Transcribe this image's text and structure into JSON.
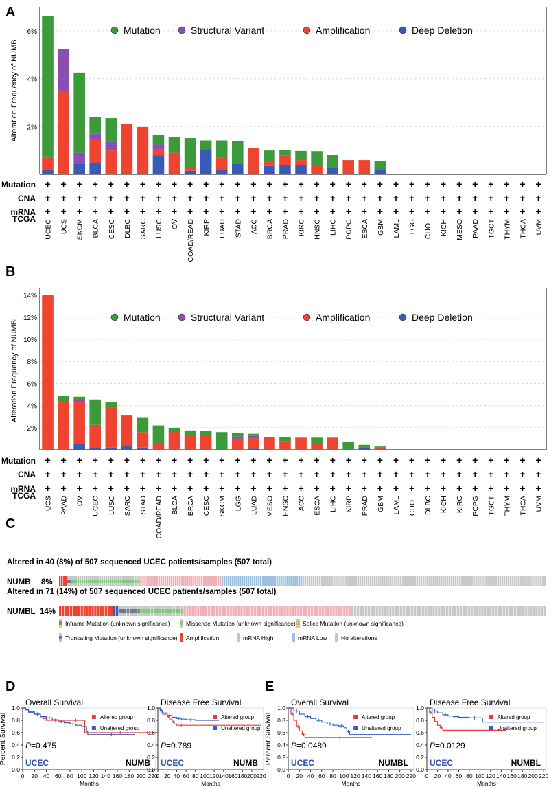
{
  "colors": {
    "mutation": "#3b9b3b",
    "structural": "#8a4fb0",
    "amplification": "#ee4430",
    "deletion": "#3a5ab8",
    "inframe": "#b8860b",
    "missense": "#7fc97f",
    "splice": "#f0b050",
    "truncating": "#6d7a8c",
    "mrna_high": "#f0b0b8",
    "mrna_low": "#9ec0e0",
    "no_alt": "#c8c8c8",
    "survival_altered": "#e83a3a",
    "survival_unaltered": "#3060c0",
    "ucec_label": "#3050b0"
  },
  "panels": {
    "A": "A",
    "B": "B",
    "C": "C",
    "D": "D",
    "E": "E"
  },
  "legend_labels": [
    "Mutation",
    "Structural Variant",
    "Amplification",
    "Deep Deletion"
  ],
  "row_labels": [
    "Mutation",
    "CNA",
    "mRNA",
    "TCGA"
  ],
  "plus_symbol": "+",
  "chart_data": [
    {
      "type": "bar",
      "id": "A",
      "ylabel": "Alteration Frequency of NUMB",
      "ylim": [
        0,
        7
      ],
      "yticks": [
        "2%",
        "4%",
        "6%"
      ],
      "ytick_values": [
        2,
        4,
        6
      ],
      "categories": [
        "UCEC",
        "UCS",
        "SKCM",
        "BLCA",
        "CESC",
        "DLBC",
        "SARC",
        "LUSC",
        "OV",
        "COAD/READ",
        "KIRP",
        "LUAD",
        "STAD",
        "ACC",
        "BRCA",
        "PRAD",
        "KIRC",
        "HNSC",
        "LIHC",
        "PCPG",
        "ESCA",
        "GBM",
        "LAML",
        "LGG",
        "CHOL",
        "KICH",
        "MESO",
        "PAAD",
        "TGCT",
        "THYM",
        "THCA",
        "UVM"
      ],
      "series": [
        {
          "name": "Deep Deletion",
          "values": [
            0.2,
            0,
            0.45,
            0.5,
            0,
            0,
            0,
            0.8,
            0,
            0.15,
            1.05,
            0.2,
            0.45,
            0,
            0.35,
            0.4,
            0.4,
            0,
            0.3,
            0,
            0,
            0.2,
            0,
            0,
            0,
            0,
            0,
            0,
            0,
            0,
            0,
            0
          ]
        },
        {
          "name": "Amplification",
          "values": [
            0.55,
            3.5,
            0,
            0.95,
            1,
            2.1,
            1.98,
            0.25,
            0.9,
            0.15,
            0,
            0.5,
            0,
            1.1,
            0.2,
            0.4,
            0.2,
            0.4,
            0,
            0.6,
            0.6,
            0,
            0,
            0,
            0,
            0,
            0,
            0,
            0,
            0,
            0,
            0
          ]
        },
        {
          "name": "Structural Variant",
          "values": [
            0,
            1.75,
            0.45,
            0.25,
            0.35,
            0,
            0,
            0.2,
            0,
            0,
            0,
            0,
            0,
            0,
            0,
            0,
            0,
            0,
            0,
            0,
            0,
            0,
            0,
            0,
            0,
            0,
            0,
            0,
            0,
            0,
            0,
            0
          ]
        },
        {
          "name": "Mutation",
          "values": [
            5.85,
            0,
            3.35,
            0.7,
            1,
            0,
            0,
            0.4,
            0.65,
            1.22,
            0.37,
            0.72,
            0.93,
            0,
            0.45,
            0.23,
            0.38,
            0.57,
            0.53,
            0,
            0,
            0.35,
            0,
            0,
            0,
            0,
            0,
            0,
            0,
            0,
            0,
            0
          ]
        }
      ]
    },
    {
      "type": "bar",
      "id": "B",
      "ylabel": "Alteration Frequency of NUMBL",
      "ylim": [
        0,
        14.6
      ],
      "yticks": [
        "2%",
        "4%",
        "6%",
        "8%",
        "10%",
        "12%",
        "14%"
      ],
      "ytick_values": [
        2,
        4,
        6,
        8,
        10,
        12,
        14
      ],
      "categories": [
        "UCS",
        "PAAD",
        "OV",
        "UCEC",
        "LUSC",
        "SARC",
        "STAD",
        "COAD/READ",
        "BLCA",
        "BRCA",
        "CESC",
        "SKCM",
        "LGG",
        "LUAD",
        "MESO",
        "HNSC",
        "ACC",
        "ESCA",
        "LIHC",
        "KIRP",
        "PRAD",
        "GBM",
        "LAML",
        "CHOL",
        "DLBC",
        "KICH",
        "KIRC",
        "PCPG",
        "TGCT",
        "THYM",
        "THCA",
        "UVM"
      ],
      "series": [
        {
          "name": "Deep Deletion",
          "values": [
            0,
            0,
            0.55,
            0.15,
            0.2,
            0.4,
            0.2,
            0,
            0,
            0,
            0,
            0,
            0,
            0.1,
            0,
            0,
            0,
            0,
            0,
            0,
            0.15,
            0,
            0,
            0,
            0,
            0,
            0,
            0,
            0,
            0,
            0,
            0
          ]
        },
        {
          "name": "Amplification",
          "values": [
            14,
            4.35,
            3.75,
            2.1,
            3.65,
            2.7,
            1.4,
            0.55,
            1.7,
            1.35,
            1.35,
            0,
            1,
            0.95,
            1.15,
            0.8,
            1.1,
            0.55,
            1.1,
            0,
            0.1,
            0.2,
            0,
            0,
            0,
            0,
            0,
            0,
            0,
            0,
            0,
            0
          ]
        },
        {
          "name": "Structural Variant",
          "values": [
            0,
            0,
            0.2,
            0,
            0,
            0,
            0,
            0,
            0,
            0,
            0,
            0,
            0.2,
            0.2,
            0,
            0,
            0,
            0,
            0,
            0,
            0,
            0,
            0,
            0,
            0,
            0,
            0,
            0,
            0,
            0,
            0,
            0
          ]
        },
        {
          "name": "Mutation",
          "values": [
            0,
            0.55,
            0.3,
            2.3,
            0.45,
            0,
            1.35,
            1.65,
            0.25,
            0.4,
            0.35,
            1.6,
            0.35,
            0.2,
            0,
            0.35,
            0,
            0.55,
            0,
            0.75,
            0.2,
            0.1,
            0,
            0,
            0,
            0,
            0,
            0,
            0,
            0,
            0,
            0
          ]
        }
      ]
    },
    {
      "type": "oncoprint",
      "id": "C",
      "rows": [
        {
          "header": "Altered in 40 (8%) of 507 sequenced UCEC patients/samples (507 total)",
          "gene": "NUMB",
          "pct": "8%",
          "segments": [
            {
              "type": "amplification",
              "count": 4
            },
            {
              "type": "truncating",
              "count": 2
            },
            {
              "type": "missense",
              "count": 34
            },
            {
              "type": "mrna_high",
              "count": 40
            },
            {
              "type": "mrna_low",
              "count": 40
            },
            {
              "type": "no_alt",
              "count": 120
            }
          ]
        },
        {
          "header": "Altered in 71 (14%) of 507 sequenced UCEC patients/samples (507 total)",
          "gene": "NUMBL",
          "pct": "14%",
          "segments": [
            {
              "type": "amplification",
              "count": 20
            },
            {
              "type": "deletion",
              "count": 2
            },
            {
              "type": "truncating",
              "count": 8
            },
            {
              "type": "missense",
              "count": 16
            },
            {
              "type": "mrna_high",
              "count": 62
            },
            {
              "type": "no_alt",
              "count": 72
            }
          ]
        }
      ],
      "legend": [
        {
          "key": "inframe",
          "label": "Inframe Mutation (unknown significance)"
        },
        {
          "key": "missense",
          "label": "Missense Mutation (unknown significance)"
        },
        {
          "key": "splice",
          "label": "Splice Mutation (unknown significance)"
        },
        {
          "key": "truncating",
          "label": "Truncating Mutation (unknown significance)"
        },
        {
          "key": "amplification",
          "label": "Amplification"
        },
        {
          "key": "mrna_high",
          "label": "mRNA High"
        },
        {
          "key": "mrna_low",
          "label": "mRNA Low"
        },
        {
          "key": "no_alt",
          "label": "No alterations"
        }
      ]
    },
    {
      "type": "line",
      "id": "D-OS",
      "title": "Overall Survival",
      "ylabel": "Percent Survival",
      "xlabel": "Months",
      "xlim": [
        0,
        225
      ],
      "ylim": [
        0,
        1.0
      ],
      "xticks": [
        0,
        20,
        40,
        60,
        80,
        100,
        120,
        140,
        160,
        180,
        200,
        220
      ],
      "yticks": [
        "0.0",
        "0.2",
        "0.4",
        "0.6",
        "0.8",
        "1.0"
      ],
      "ytick_values": [
        0,
        0.2,
        0.4,
        0.6,
        0.8,
        1.0
      ],
      "legend": [
        "Altered group",
        "Unaltered group"
      ],
      "pvalue_prefix": "P",
      "pvalue": "=0.475",
      "cohort": "UCEC",
      "gene": "NUMB",
      "series": [
        {
          "name": "Altered group",
          "x": [
            0,
            5,
            10,
            20,
            30,
            35,
            40,
            50,
            60,
            80,
            100,
            105,
            225
          ],
          "y": [
            1.0,
            0.97,
            0.94,
            0.9,
            0.86,
            0.83,
            0.8,
            0.8,
            0.8,
            0.8,
            0.8,
            0.6,
            0.6
          ]
        },
        {
          "name": "Unaltered group",
          "x": [
            0,
            5,
            10,
            20,
            30,
            40,
            50,
            60,
            70,
            80,
            90,
            100,
            108,
            110,
            190
          ],
          "y": [
            1.0,
            0.97,
            0.93,
            0.9,
            0.86,
            0.84,
            0.81,
            0.78,
            0.76,
            0.74,
            0.72,
            0.7,
            0.62,
            0.57,
            0.57
          ]
        }
      ]
    },
    {
      "type": "line",
      "id": "D-DFS",
      "title": "Disease Free Survival",
      "xlabel": "Months",
      "xlim": [
        0,
        225
      ],
      "ylim": [
        0,
        1.0
      ],
      "xticks": [
        0,
        20,
        40,
        60,
        80,
        100,
        120,
        140,
        160,
        180,
        200,
        220
      ],
      "yticks": [
        "0.0",
        "0.2",
        "0.4",
        "0.6",
        "0.8",
        "1.0"
      ],
      "ytick_values": [
        0,
        0.2,
        0.4,
        0.6,
        0.8,
        1.0
      ],
      "legend": [
        "Altered group",
        "Unaltered group"
      ],
      "pvalue_prefix": "P",
      "pvalue": "=0.789",
      "cohort": "UCEC",
      "gene": "NUMB",
      "series": [
        {
          "name": "Altered group",
          "x": [
            0,
            5,
            10,
            20,
            25,
            30,
            35,
            40,
            60,
            220
          ],
          "y": [
            1.0,
            0.95,
            0.9,
            0.86,
            0.82,
            0.78,
            0.74,
            0.72,
            0.72,
            0.72
          ]
        },
        {
          "name": "Unaltered group",
          "x": [
            0,
            5,
            10,
            20,
            30,
            40,
            50,
            60,
            80,
            130
          ],
          "y": [
            1.0,
            0.96,
            0.92,
            0.88,
            0.85,
            0.83,
            0.82,
            0.81,
            0.8,
            0.8
          ]
        }
      ]
    },
    {
      "type": "line",
      "id": "E-OS",
      "title": "Overall Survival",
      "ylabel": "Percent Survival",
      "xlabel": "Months",
      "xlim": [
        0,
        225
      ],
      "ylim": [
        0,
        1.0
      ],
      "xticks": [
        0,
        20,
        40,
        60,
        80,
        100,
        120,
        140,
        160,
        180,
        200,
        220
      ],
      "yticks": [
        "0.0",
        "0.2",
        "0.4",
        "0.6",
        "0.8",
        "1.0"
      ],
      "ytick_values": [
        0,
        0.2,
        0.4,
        0.6,
        0.8,
        1.0
      ],
      "legend": [
        "Altered group",
        "Unaltered group"
      ],
      "pvalue_prefix": "P",
      "pvalue": "=0.0489",
      "cohort": "UCEC",
      "gene": "NUMBL",
      "series": [
        {
          "name": "Altered group",
          "x": [
            0,
            5,
            10,
            15,
            20,
            25,
            30,
            35,
            150
          ],
          "y": [
            1.0,
            0.9,
            0.8,
            0.7,
            0.63,
            0.57,
            0.52,
            0.52,
            0.52
          ]
        },
        {
          "name": "Unaltered group",
          "x": [
            0,
            10,
            20,
            30,
            40,
            50,
            60,
            70,
            80,
            90,
            100,
            105,
            110,
            220
          ],
          "y": [
            1.0,
            0.95,
            0.9,
            0.86,
            0.83,
            0.8,
            0.77,
            0.74,
            0.72,
            0.71,
            0.68,
            0.62,
            0.57,
            0.57
          ]
        }
      ]
    },
    {
      "type": "line",
      "id": "E-DFS",
      "title": "Disease Free Survival",
      "xlabel": "Months",
      "xlim": [
        0,
        225
      ],
      "ylim": [
        0,
        1.0
      ],
      "xticks": [
        0,
        20,
        40,
        60,
        80,
        100,
        120,
        140,
        160,
        180,
        200,
        220
      ],
      "yticks": [
        "0.0",
        "0.2",
        "0.4",
        "0.6",
        "0.8",
        "1.0"
      ],
      "ytick_values": [
        0,
        0.2,
        0.4,
        0.6,
        0.8,
        1.0
      ],
      "legend": [
        "Altered group",
        "Unaltered group"
      ],
      "pvalue_prefix": "P",
      "pvalue": "=0.0129",
      "cohort": "UCEC",
      "gene": "NUMBL",
      "series": [
        {
          "name": "Altered group",
          "x": [
            0,
            5,
            10,
            15,
            20,
            25,
            30,
            150
          ],
          "y": [
            1.0,
            0.93,
            0.85,
            0.78,
            0.72,
            0.68,
            0.64,
            0.64
          ]
        },
        {
          "name": "Unaltered group",
          "x": [
            0,
            10,
            20,
            30,
            40,
            50,
            60,
            80,
            100,
            105,
            220
          ],
          "y": [
            1.0,
            0.95,
            0.92,
            0.89,
            0.87,
            0.86,
            0.85,
            0.84,
            0.84,
            0.77,
            0.77
          ]
        }
      ]
    }
  ]
}
